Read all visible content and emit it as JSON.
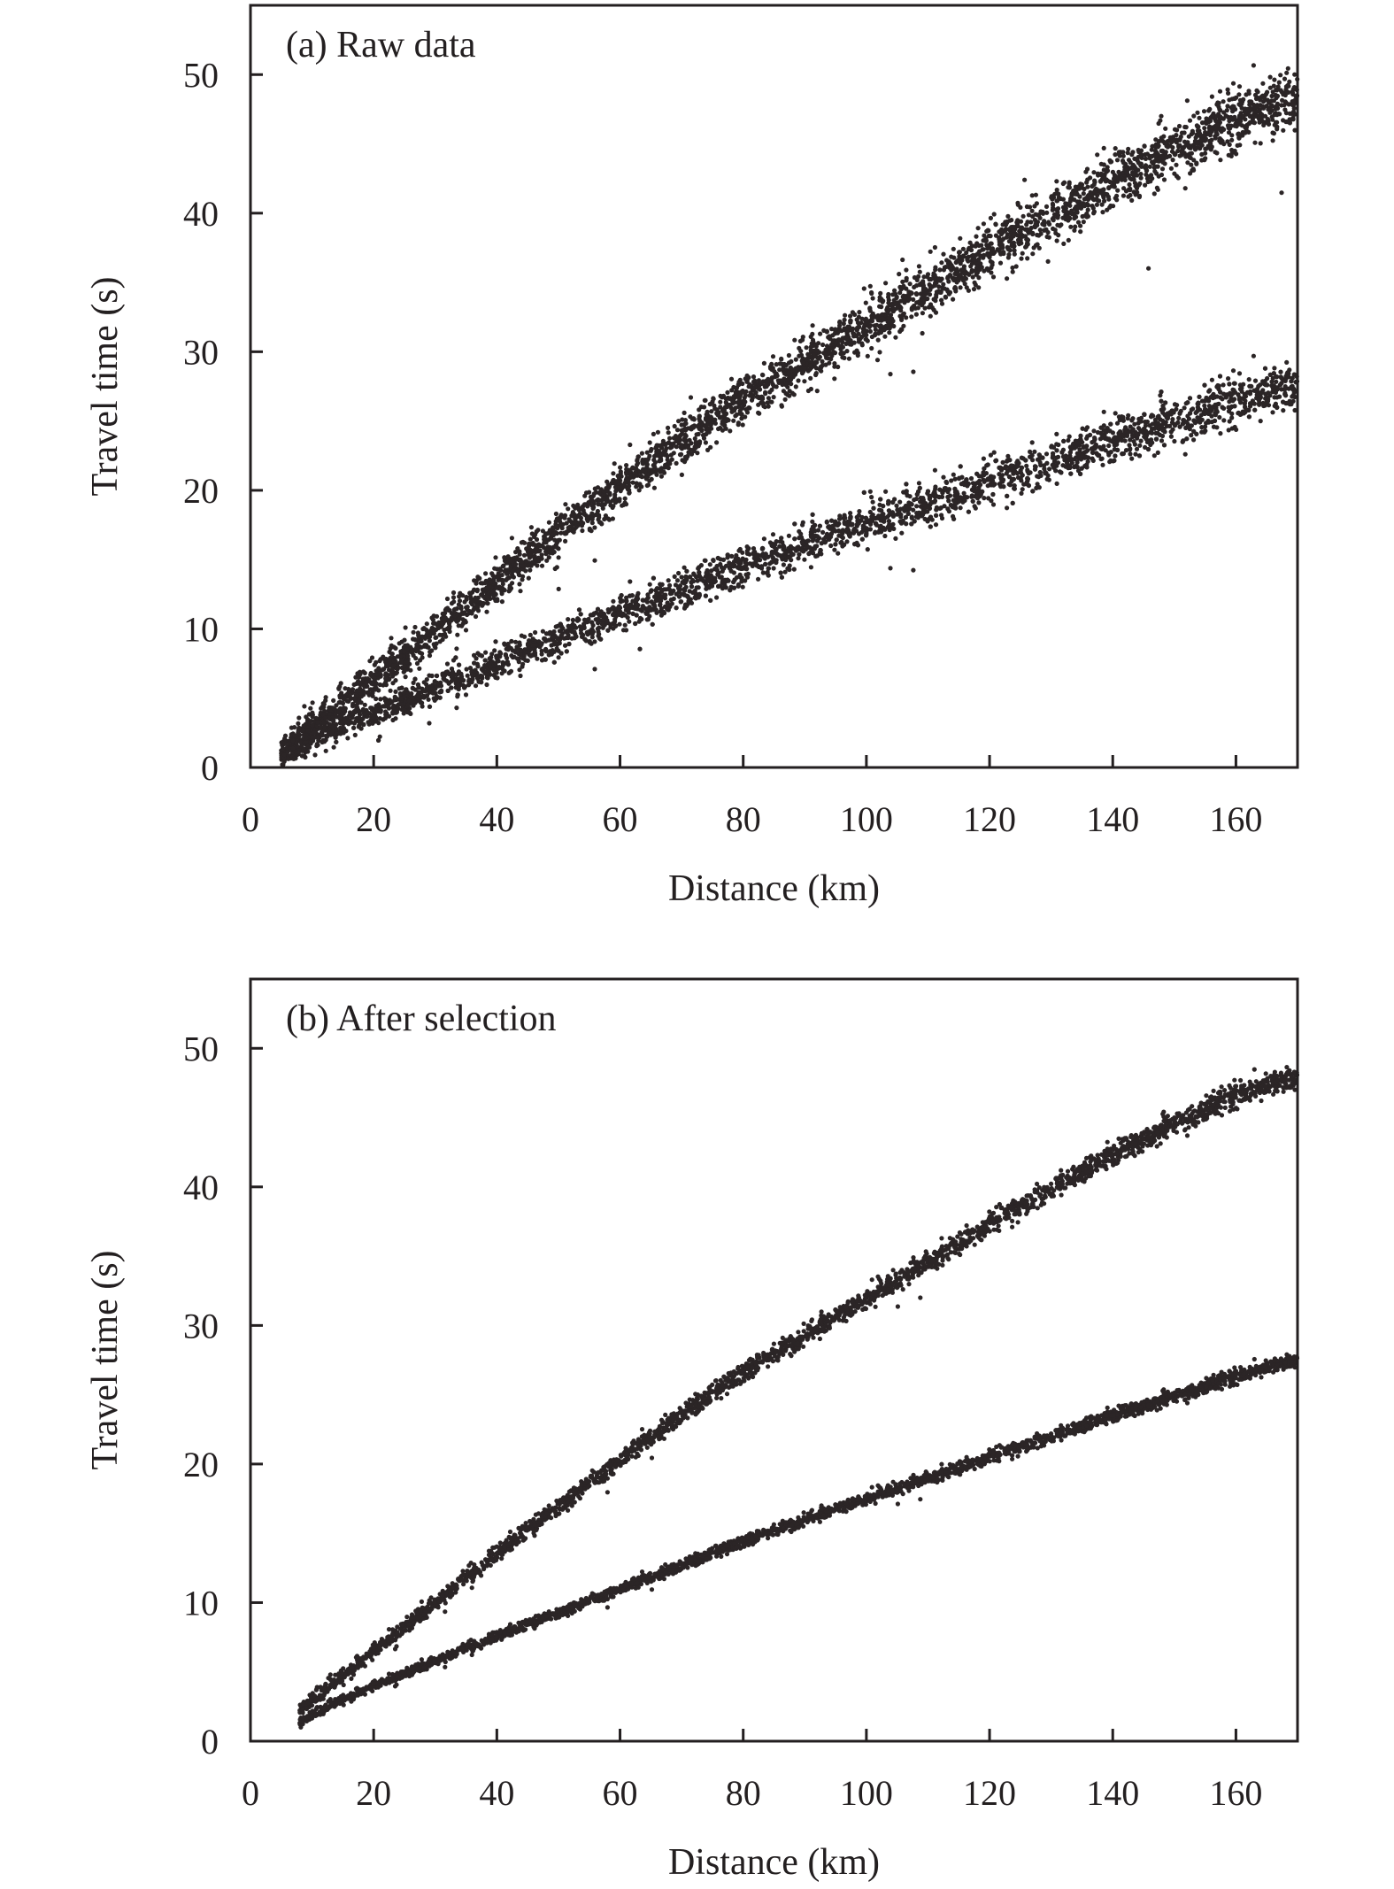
{
  "figure": {
    "colors": {
      "marker": "#2b2526",
      "axis": "#231f20",
      "background": "#ffffff"
    }
  },
  "chart_data": [
    {
      "type": "scatter",
      "title": "(a) Raw data",
      "xlabel": "Distance (km)",
      "ylabel": "Travel time (s)",
      "xlim": [
        0,
        170
      ],
      "ylim": [
        0,
        55
      ],
      "xticks": [
        0,
        20,
        40,
        60,
        80,
        100,
        120,
        140,
        160
      ],
      "yticks": [
        0,
        10,
        20,
        30,
        40,
        50
      ],
      "grid": false,
      "series": [
        {
          "x": [
            5,
            10,
            15,
            20,
            25,
            30,
            40,
            50,
            60,
            70,
            80,
            90,
            100,
            110,
            120,
            130,
            140,
            150,
            160,
            170
          ],
          "y": [
            1.2,
            2.8,
            4.6,
            6.4,
            8.1,
            9.9,
            13.4,
            16.9,
            20.3,
            23.6,
            26.5,
            29.2,
            31.9,
            34.6,
            37.3,
            39.9,
            42.3,
            44.6,
            46.7,
            48.3
          ],
          "spread": 2.4
        },
        {
          "x": [
            5,
            10,
            15,
            20,
            25,
            30,
            40,
            50,
            60,
            70,
            80,
            90,
            100,
            110,
            120,
            130,
            140,
            150,
            160,
            170
          ],
          "y": [
            1.0,
            2.1,
            3.1,
            4.0,
            4.9,
            5.8,
            7.6,
            9.4,
            11.1,
            12.8,
            14.5,
            16.1,
            17.6,
            19.1,
            20.6,
            22.1,
            23.6,
            25.0,
            26.4,
            27.7
          ],
          "spread": 2.0
        }
      ],
      "point_count_per_series": 3600
    },
    {
      "type": "scatter",
      "title": "(b) After selection",
      "xlabel": "Distance (km)",
      "ylabel": "Travel time (s)",
      "xlim": [
        0,
        170
      ],
      "ylim": [
        0,
        55
      ],
      "xticks": [
        0,
        20,
        40,
        60,
        80,
        100,
        120,
        140,
        160
      ],
      "yticks": [
        0,
        10,
        20,
        30,
        40,
        50
      ],
      "grid": false,
      "series": [
        {
          "x": [
            8,
            10,
            15,
            20,
            25,
            30,
            40,
            50,
            60,
            70,
            80,
            90,
            100,
            110,
            120,
            130,
            140,
            150,
            160,
            170
          ],
          "y": [
            2.2,
            3.0,
            4.7,
            6.5,
            8.3,
            10.0,
            13.6,
            17.0,
            20.3,
            23.6,
            26.6,
            29.3,
            31.9,
            34.6,
            37.3,
            39.9,
            42.3,
            44.6,
            46.6,
            48.0
          ],
          "spread": 1.0
        },
        {
          "x": [
            8,
            10,
            15,
            20,
            25,
            30,
            40,
            50,
            60,
            70,
            80,
            90,
            100,
            110,
            120,
            130,
            140,
            150,
            160,
            170
          ],
          "y": [
            1.3,
            1.9,
            3.0,
            4.0,
            4.9,
            5.8,
            7.6,
            9.3,
            11.0,
            12.7,
            14.4,
            16.0,
            17.5,
            19.0,
            20.5,
            22.0,
            23.5,
            24.9,
            26.3,
            27.6
          ],
          "spread": 0.6
        }
      ],
      "point_count_per_series": 2600
    }
  ]
}
